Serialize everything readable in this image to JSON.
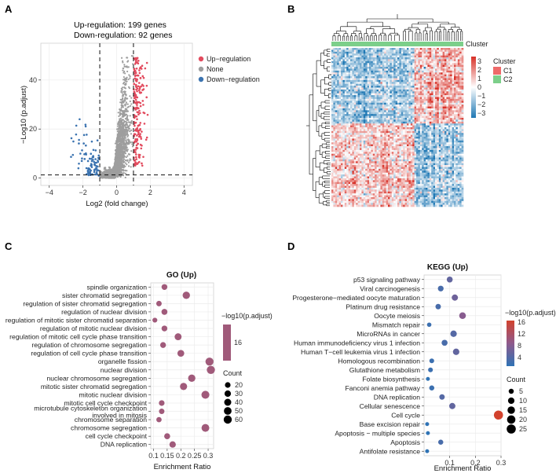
{
  "panels": {
    "A": {
      "letter": "A"
    },
    "B": {
      "letter": "B"
    },
    "C": {
      "letter": "C"
    },
    "D": {
      "letter": "D"
    }
  },
  "chart_data": [
    {
      "id": "A",
      "type": "scatter",
      "annotation_lines": [
        "Up-regulation: 199 genes",
        "Down-regulation: 92 genes"
      ],
      "xlabel": "Log2 (fold change)",
      "ylabel": "−Log10 (p.adjust)",
      "xlim": [
        -4.5,
        4.5
      ],
      "ylim": [
        -3,
        55
      ],
      "xticks": [
        -4,
        -2,
        0,
        2,
        4
      ],
      "yticks": [
        0,
        20,
        40
      ],
      "thresholds": {
        "x": [
          -1,
          1
        ],
        "y": 1.3
      },
      "legend": [
        {
          "label": "Up−regulation",
          "color": "#e24b5e"
        },
        {
          "label": "None",
          "color": "#9e9e9e"
        },
        {
          "label": "Down−regulation",
          "color": "#3b73b0"
        }
      ],
      "counts": {
        "up": 199,
        "down": 92
      }
    },
    {
      "id": "B",
      "type": "heatmap",
      "annotation_label": "Cluster",
      "colorbar_ticks": [
        "3",
        "2",
        "1",
        "0",
        "−1",
        "−2",
        "−3"
      ],
      "colors": {
        "high": "#d73027",
        "mid": "#ffffff",
        "low": "#1f78b4"
      },
      "cluster_legend_title": "Cluster",
      "clusters": [
        {
          "label": "C1",
          "color": "#ee6a6a"
        },
        {
          "label": "C2",
          "color": "#7ccf8a"
        }
      ]
    },
    {
      "id": "C",
      "type": "scatter",
      "title": "GO (Up)",
      "xlabel": "Enrichment Ratio",
      "xticks": [
        0.1,
        0.15,
        0.2,
        0.25,
        0.3
      ],
      "xlim": [
        0.09,
        0.32
      ],
      "color_legend_title": "−log10(p.adjust)",
      "color_legend_ticks": [
        "16"
      ],
      "point_color": "#a05a7a",
      "size_legend_title": "Count",
      "size_legend": [
        20,
        30,
        40,
        50,
        60
      ],
      "terms": [
        "spindle organization",
        "sister chromatid segregation",
        "regulation of sister chromatid segregation",
        "regulation of nuclear division",
        "regulation of mitotic sister chromatid separation",
        "regulation of mitotic nuclear division",
        "regulation of mitotic cell cycle phase transition",
        "regulation of chromosome segregation",
        "regulation of cell cycle phase transition",
        "organelle fission",
        "nuclear division",
        "nuclear chromosome segregation",
        "mitotic sister chromatid segregation",
        "mitotic nuclear division",
        "mitotic cell cycle checkpoint",
        "microtubule cytoskeleton organization involved in mitosis",
        "chromosome separation",
        "chromosome segregation",
        "cell cycle checkpoint",
        "DNA replication"
      ],
      "enrichment_ratio": [
        0.14,
        0.22,
        0.12,
        0.14,
        0.105,
        0.14,
        0.19,
        0.135,
        0.2,
        0.305,
        0.31,
        0.24,
        0.21,
        0.29,
        0.13,
        0.13,
        0.12,
        0.29,
        0.15,
        0.17
      ],
      "count": [
        22,
        45,
        18,
        24,
        12,
        22,
        38,
        22,
        36,
        58,
        60,
        44,
        42,
        56,
        20,
        18,
        16,
        52,
        24,
        30
      ]
    },
    {
      "id": "D",
      "type": "scatter",
      "title": "KEGG (Up)",
      "xlabel": "Enrichment Ratio",
      "xticks": [
        0.1,
        0.2,
        0.3
      ],
      "xlim": [
        0,
        0.3
      ],
      "color_legend_title": "−log10(p.adjust)",
      "color_legend_ticks": [
        "16",
        "12",
        "8",
        "4"
      ],
      "color_scale": {
        "low": "#2f73b5",
        "mid": "#8e5a8c",
        "high": "#d2422d"
      },
      "size_legend_title": "Count",
      "size_legend": [
        5,
        10,
        15,
        20,
        25
      ],
      "terms": [
        "p53 signaling pathway",
        "Viral carcinogenesis",
        "Progesterone−mediated oocyte maturation",
        "Platinum drug resistance",
        "Oocyte meiosis",
        "Mismatch repair",
        "MicroRNAs in cancer",
        "Human immunodeficiency virus 1 infection",
        "Human T−cell leukemia virus 1 infection",
        "Homologous recombination",
        "Glutathione metabolism",
        "Folate biosynthesis",
        "Fanconi anemia pathway",
        "DNA replication",
        "Cellular senescence",
        "Cell cycle",
        "Base excision repair",
        "Apoptosis − multiple species",
        "Apoptosis",
        "Antifolate resistance"
      ],
      "enrichment_ratio": [
        0.1,
        0.065,
        0.12,
        0.055,
        0.15,
        0.02,
        0.115,
        0.08,
        0.125,
        0.03,
        0.025,
        0.015,
        0.03,
        0.07,
        0.11,
        0.29,
        0.012,
        0.015,
        0.065,
        0.012
      ],
      "count": [
        8,
        7,
        9,
        6,
        11,
        3,
        10,
        8,
        10,
        4,
        4,
        2,
        5,
        6,
        9,
        25,
        2,
        2,
        5,
        2
      ],
      "neg_log10_padj": [
        5,
        3,
        6,
        3,
        8,
        2,
        4,
        3,
        5,
        2,
        2,
        1,
        2,
        4,
        5,
        16,
        1,
        1,
        3,
        1
      ]
    }
  ]
}
